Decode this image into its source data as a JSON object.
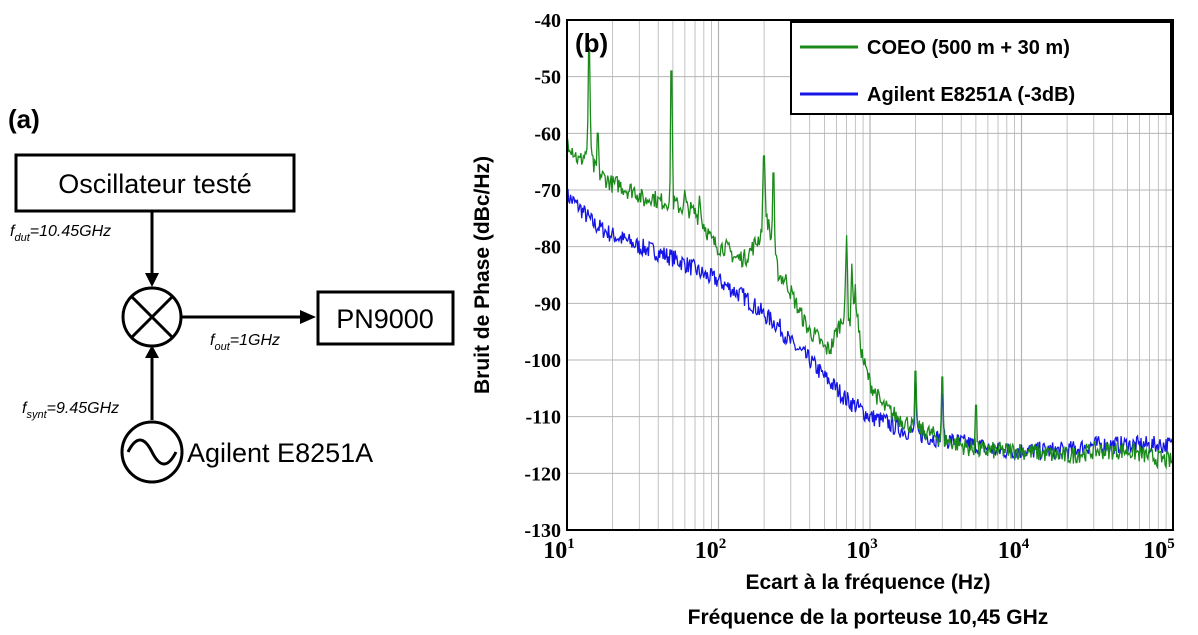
{
  "diagram": {
    "panel_label": "(a)",
    "dut_box": "Oscillateur testé",
    "analyzer_box": "PN9000",
    "source_label": "Agilent E8251A",
    "f_dut": {
      "sym": "f",
      "sub": "dut",
      "value": "=10.45GHz"
    },
    "f_out": {
      "sym": "f",
      "sub": "out",
      "value": "=1GHz"
    },
    "f_synt": {
      "sym": "f",
      "sub": "synt",
      "value": "=9.45GHz"
    },
    "icons": {
      "mixer": "mixer-icon",
      "source": "sine-source-icon"
    }
  },
  "chart_data": {
    "type": "line",
    "panel_label": "(b)",
    "ylabel": "Bruit de Phase (dBc/Hz)",
    "xlabel": "Ecart à la fréquence (Hz)",
    "subtitle": "Fréquence de la porteuse 10,45 GHz",
    "x_scale": "log",
    "xlim": [
      10,
      100000
    ],
    "ylim": [
      -130,
      -40
    ],
    "grid": true,
    "legend_position": "top-right",
    "x_ticks": [
      {
        "base": "10",
        "exp": "1"
      },
      {
        "base": "10",
        "exp": "2"
      },
      {
        "base": "10",
        "exp": "3"
      },
      {
        "base": "10",
        "exp": "4"
      },
      {
        "base": "10",
        "exp": "5"
      }
    ],
    "y_ticks": [
      "-40",
      "-50",
      "-60",
      "-70",
      "-80",
      "-90",
      "-100",
      "-110",
      "-120",
      "-130"
    ],
    "series": [
      {
        "name": "COEO (500 m + 30 m)",
        "color": "#1a8a1a",
        "x": [
          10,
          11,
          12,
          13,
          14,
          15,
          16,
          18,
          20,
          22,
          25,
          28,
          30,
          33,
          36,
          40,
          45,
          49,
          55,
          60,
          70,
          80,
          90,
          100,
          110,
          130,
          150,
          170,
          190,
          200,
          220,
          250,
          280,
          300,
          350,
          400,
          450,
          500,
          550,
          600,
          650,
          700,
          750,
          800,
          850,
          900,
          1000,
          1200,
          1500,
          2000,
          2500,
          3000,
          4000,
          5000,
          7000,
          10000,
          20000,
          30000,
          50000,
          70000,
          100000
        ],
        "y": [
          -61,
          -63,
          -65,
          -64,
          -62,
          -66,
          -67,
          -68,
          -69,
          -69,
          -70,
          -70,
          -71,
          -72,
          -71,
          -72,
          -72,
          -72,
          -73,
          -73,
          -74,
          -76,
          -79,
          -80,
          -80,
          -82,
          -82,
          -80,
          -78,
          -72,
          -78,
          -85,
          -86,
          -88,
          -92,
          -95,
          -96,
          -98,
          -98,
          -95,
          -93,
          -90,
          -94,
          -88,
          -96,
          -100,
          -104,
          -108,
          -110,
          -112,
          -113,
          -114,
          -115,
          -116,
          -116,
          -116,
          -117,
          -116,
          -116,
          -117,
          -118
        ],
        "spikes": [
          [
            14,
            -45
          ],
          [
            16,
            -60
          ],
          [
            49,
            -49
          ],
          [
            60,
            -70
          ],
          [
            75,
            -71
          ],
          [
            200,
            -64
          ],
          [
            230,
            -67
          ],
          [
            700,
            -78
          ],
          [
            760,
            -83
          ],
          [
            2000,
            -102
          ],
          [
            3000,
            -103
          ],
          [
            5000,
            -108
          ]
        ]
      },
      {
        "name": "Agilent E8251A (-3dB)",
        "color": "#1515e6",
        "x": [
          10,
          12,
          15,
          20,
          25,
          30,
          40,
          50,
          60,
          70,
          80,
          100,
          130,
          150,
          200,
          250,
          300,
          400,
          500,
          600,
          700,
          800,
          1000,
          1300,
          1500,
          2000,
          3000,
          5000,
          7000,
          10000,
          20000,
          30000,
          50000,
          100000
        ],
        "y": [
          -71,
          -73,
          -76,
          -78,
          -79,
          -80,
          -81,
          -82,
          -83,
          -84,
          -85,
          -86,
          -88,
          -89,
          -92,
          -94,
          -97,
          -100,
          -103,
          -105,
          -107,
          -108,
          -110,
          -111,
          -112,
          -113,
          -114,
          -115,
          -116,
          -116,
          -116,
          -115,
          -115,
          -115
        ],
        "spikes": [
          [
            2000,
            -104
          ],
          [
            3000,
            -106
          ]
        ]
      }
    ]
  }
}
